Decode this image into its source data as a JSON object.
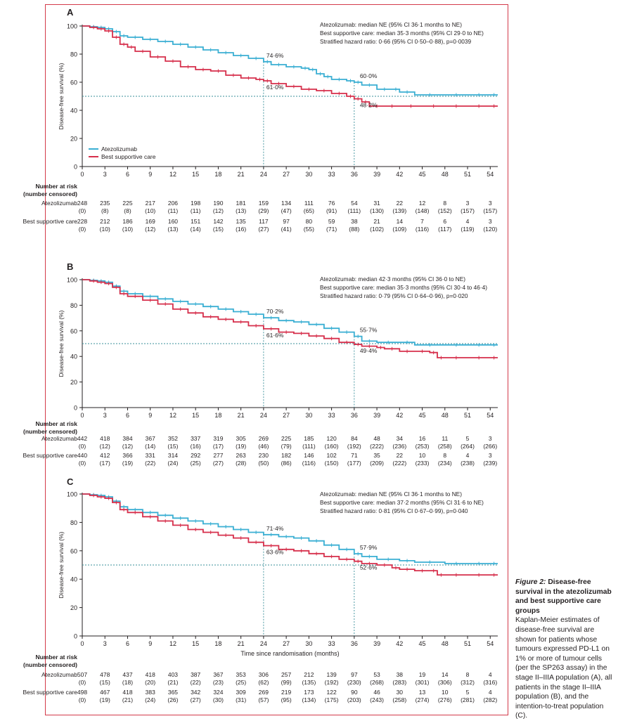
{
  "colors": {
    "atezolizumab": "#3aafd3",
    "bsc": "#d62f4b",
    "frame": "#d33a4a",
    "axis": "#231f20",
    "reference": "#3a8f9a"
  },
  "caption": {
    "figure_label": "Figure 2:",
    "title": "Disease-free survival in the atezolizumab and best supportive care groups",
    "body": "Kaplan-Meier estimates of disease-free survival are shown for patients whose tumours expressed PD-L1 on 1% or more of tumour cells (per the SP263 assay) in the stage II–IIIA population (A), all patients in the stage II–IIIA population (B), and the intention-to-treat population (C)."
  },
  "chart_data": [
    {
      "type": "line",
      "panel": "A",
      "ylabel": "Disease-free survival (%)",
      "xlabel": "",
      "xlim": [
        0,
        55
      ],
      "ylim": [
        0,
        100
      ],
      "xticks": [
        "0",
        "3",
        "6",
        "9",
        "12",
        "15",
        "18",
        "21",
        "24",
        "27",
        "30",
        "33",
        "36",
        "39",
        "42",
        "45",
        "48",
        "51",
        "54"
      ],
      "yticks": [
        "0",
        "20",
        "40",
        "60",
        "80",
        "100"
      ],
      "legend": [
        "Atezolizumab",
        "Best supportive care"
      ],
      "legend_position": "bottom-left",
      "stats": [
        "Atezolizumab: median NE (95% CI 36·1 months to NE)",
        "Best supportive care: median 35·3 months (95% CI 29·0 to NE)",
        "Stratified hazard ratio: 0·66 (95% CI 0·50–0·88), p=0·0039"
      ],
      "annotations": [
        {
          "text": "74·6%",
          "x": 24,
          "y": 74.6,
          "series": "atezolizumab"
        },
        {
          "text": "61·0%",
          "x": 24,
          "y": 61.0,
          "series": "bsc"
        },
        {
          "text": "60·0%",
          "x": 36,
          "y": 60.0,
          "series": "atezolizumab"
        },
        {
          "text": "48·2%",
          "x": 36,
          "y": 48.2,
          "series": "bsc"
        }
      ],
      "series": [
        {
          "name": "Atezolizumab",
          "key": "atezolizumab",
          "x": [
            0,
            1,
            2,
            3,
            4,
            5,
            6,
            8,
            10,
            12,
            14,
            16,
            18,
            20,
            22,
            24,
            25,
            27,
            29,
            30,
            31,
            32,
            33,
            35,
            36,
            37,
            39,
            41,
            42,
            44,
            48,
            51,
            54,
            55
          ],
          "y": [
            100,
            99.5,
            99,
            98,
            96,
            93,
            92,
            90.5,
            89,
            87,
            85,
            83,
            81,
            79,
            77,
            74.6,
            72.5,
            71,
            70,
            69,
            66,
            64,
            62,
            61,
            60,
            58,
            55,
            55,
            53,
            51,
            51,
            51,
            51,
            51
          ]
        },
        {
          "name": "Best supportive care",
          "key": "bsc",
          "x": [
            0,
            1,
            2,
            3,
            4,
            5,
            6,
            7,
            9,
            11,
            13,
            15,
            17,
            19,
            21,
            23,
            24,
            25,
            27,
            29,
            31,
            33,
            35,
            36,
            37,
            38,
            40,
            42,
            45,
            48,
            51,
            54,
            55
          ],
          "y": [
            100,
            99,
            98,
            96.5,
            92,
            87,
            85,
            82,
            78,
            75,
            71,
            69,
            68,
            65,
            63,
            62,
            61,
            59,
            57,
            55,
            54,
            52,
            50,
            48.2,
            46,
            43,
            43,
            43,
            43,
            43,
            43,
            43,
            43
          ]
        }
      ],
      "risk_table": {
        "title_line1": "Number at risk",
        "title_line2": "(number censored)",
        "rows": [
          {
            "label": "Atezolizumab",
            "at_risk": [
              "248",
              "235",
              "225",
              "217",
              "206",
              "198",
              "190",
              "181",
              "159",
              "134",
              "111",
              "76",
              "54",
              "31",
              "22",
              "12",
              "8",
              "3",
              "3"
            ],
            "censored": [
              "(0)",
              "(8)",
              "(8)",
              "(10)",
              "(11)",
              "(11)",
              "(12)",
              "(13)",
              "(29)",
              "(47)",
              "(65)",
              "(91)",
              "(111)",
              "(130)",
              "(139)",
              "(148)",
              "(152)",
              "(157)",
              "(157)"
            ]
          },
          {
            "label": "Best supportive care",
            "at_risk": [
              "228",
              "212",
              "186",
              "169",
              "160",
              "151",
              "142",
              "135",
              "117",
              "97",
              "80",
              "59",
              "38",
              "21",
              "14",
              "7",
              "6",
              "4",
              "3"
            ],
            "censored": [
              "(0)",
              "(10)",
              "(10)",
              "(12)",
              "(13)",
              "(14)",
              "(15)",
              "(16)",
              "(27)",
              "(41)",
              "(55)",
              "(71)",
              "(88)",
              "(102)",
              "(109)",
              "(116)",
              "(117)",
              "(119)",
              "(120)"
            ]
          }
        ]
      }
    },
    {
      "type": "line",
      "panel": "B",
      "ylabel": "Disease-free survival (%)",
      "xlabel": "",
      "xlim": [
        0,
        55
      ],
      "ylim": [
        0,
        100
      ],
      "xticks": [
        "0",
        "3",
        "6",
        "9",
        "12",
        "15",
        "18",
        "21",
        "24",
        "27",
        "30",
        "33",
        "36",
        "39",
        "42",
        "45",
        "48",
        "51",
        "54"
      ],
      "yticks": [
        "0",
        "20",
        "40",
        "60",
        "80",
        "100"
      ],
      "stats": [
        "Atezolizumab: median 42·3 months (95% CI 36·0 to NE)",
        "Best supportive care: median 35·3 months (95% CI 30·4 to 46·4)",
        "Stratified hazard ratio: 0·79 (95% CI 0·64–0·96), p=0·020"
      ],
      "annotations": [
        {
          "text": "70·2%",
          "x": 24,
          "y": 70.2,
          "series": "atezolizumab"
        },
        {
          "text": "61·6%",
          "x": 24,
          "y": 61.6,
          "series": "bsc"
        },
        {
          "text": "55·7%",
          "x": 36,
          "y": 55.7,
          "series": "atezolizumab"
        },
        {
          "text": "49·4%",
          "x": 36,
          "y": 49.4,
          "series": "bsc"
        }
      ],
      "series": [
        {
          "name": "Atezolizumab",
          "key": "atezolizumab",
          "x": [
            0,
            1,
            2,
            3,
            4,
            5,
            6,
            8,
            10,
            12,
            14,
            16,
            18,
            20,
            22,
            24,
            26,
            28,
            30,
            32,
            34,
            36,
            37,
            39,
            42,
            44,
            48,
            51,
            54,
            55
          ],
          "y": [
            100,
            99.5,
            99,
            98,
            95,
            91,
            89,
            87,
            85,
            83,
            81,
            79,
            77,
            75,
            73,
            70.2,
            68,
            67,
            65,
            62,
            59,
            55.7,
            52,
            51,
            51,
            49,
            49,
            49,
            49,
            49
          ]
        },
        {
          "name": "Best supportive care",
          "key": "bsc",
          "x": [
            0,
            1,
            2,
            3,
            4,
            5,
            6,
            8,
            10,
            12,
            14,
            16,
            18,
            20,
            22,
            24,
            26,
            28,
            30,
            32,
            34,
            36,
            37,
            39,
            40,
            42,
            44,
            46,
            47,
            48,
            51,
            54,
            55
          ],
          "y": [
            100,
            99,
            98,
            97,
            94,
            89,
            87,
            84,
            81,
            77,
            74,
            71,
            69,
            67,
            64,
            61.6,
            59,
            58,
            56,
            54,
            51,
            49.4,
            48,
            47,
            46,
            44,
            44,
            43,
            39,
            39,
            39,
            39,
            39
          ]
        }
      ],
      "risk_table": {
        "title_line1": "Number at risk",
        "title_line2": "(number censored)",
        "rows": [
          {
            "label": "Atezolizumab",
            "at_risk": [
              "442",
              "418",
              "384",
              "367",
              "352",
              "337",
              "319",
              "305",
              "269",
              "225",
              "185",
              "120",
              "84",
              "48",
              "34",
              "16",
              "11",
              "5",
              "3"
            ],
            "censored": [
              "(0)",
              "(12)",
              "(12)",
              "(14)",
              "(15)",
              "(16)",
              "(17)",
              "(19)",
              "(46)",
              "(79)",
              "(111)",
              "(160)",
              "(192)",
              "(222)",
              "(236)",
              "(253)",
              "(258)",
              "(264)",
              "(266)"
            ]
          },
          {
            "label": "Best supportive care",
            "at_risk": [
              "440",
              "412",
              "366",
              "331",
              "314",
              "292",
              "277",
              "263",
              "230",
              "182",
              "146",
              "102",
              "71",
              "35",
              "22",
              "10",
              "8",
              "4",
              "3"
            ],
            "censored": [
              "(0)",
              "(17)",
              "(19)",
              "(22)",
              "(24)",
              "(25)",
              "(27)",
              "(28)",
              "(50)",
              "(86)",
              "(116)",
              "(150)",
              "(177)",
              "(209)",
              "(222)",
              "(233)",
              "(234)",
              "(238)",
              "(239)"
            ]
          }
        ]
      }
    },
    {
      "type": "line",
      "panel": "C",
      "ylabel": "Disease-free survival (%)",
      "xlabel": "Time since randomisation (months)",
      "xlim": [
        0,
        55
      ],
      "ylim": [
        0,
        100
      ],
      "xticks": [
        "0",
        "3",
        "6",
        "9",
        "12",
        "15",
        "18",
        "21",
        "24",
        "27",
        "30",
        "33",
        "36",
        "39",
        "42",
        "45",
        "48",
        "51",
        "54"
      ],
      "yticks": [
        "0",
        "20",
        "40",
        "60",
        "80",
        "100"
      ],
      "stats": [
        "Atezolizumab: median NE (95% CI 36·1 months to NE)",
        "Best supportive care: median 37·2 months (95% CI 31·6 to NE)",
        "Stratified hazard ratio: 0·81 (95% CI 0·67–0·99), p=0·040"
      ],
      "annotations": [
        {
          "text": "71·4%",
          "x": 24,
          "y": 71.4,
          "series": "atezolizumab"
        },
        {
          "text": "63·6%",
          "x": 24,
          "y": 63.6,
          "series": "bsc"
        },
        {
          "text": "57·9%",
          "x": 36,
          "y": 57.9,
          "series": "atezolizumab"
        },
        {
          "text": "52·6%",
          "x": 36,
          "y": 52.6,
          "series": "bsc"
        }
      ],
      "series": [
        {
          "name": "Atezolizumab",
          "key": "atezolizumab",
          "x": [
            0,
            1,
            2,
            3,
            4,
            5,
            6,
            8,
            10,
            12,
            14,
            16,
            18,
            20,
            22,
            24,
            26,
            28,
            30,
            32,
            34,
            36,
            37,
            39,
            42,
            44,
            48,
            51,
            54,
            55
          ],
          "y": [
            100,
            99.5,
            99,
            98,
            95,
            91,
            89,
            87,
            85,
            83,
            81,
            79,
            77,
            75,
            73,
            71.4,
            70,
            69,
            67,
            64,
            61,
            57.9,
            56,
            54,
            53,
            52,
            51,
            51,
            51,
            51
          ]
        },
        {
          "name": "Best supportive care",
          "key": "bsc",
          "x": [
            0,
            1,
            2,
            3,
            4,
            5,
            6,
            8,
            10,
            12,
            14,
            16,
            18,
            20,
            22,
            24,
            26,
            28,
            30,
            32,
            34,
            36,
            37,
            39,
            41,
            42,
            44,
            46,
            47,
            48,
            51,
            54,
            55
          ],
          "y": [
            100,
            99,
            98,
            97,
            94,
            89,
            87,
            84,
            81,
            78,
            75,
            73,
            71,
            69,
            66,
            63.6,
            61,
            60,
            58,
            56,
            54,
            52.6,
            51,
            50,
            48,
            47,
            46,
            46,
            43,
            43,
            43,
            43,
            43
          ]
        }
      ],
      "risk_table": {
        "title_line1": "Number at risk",
        "title_line2": "(number censored)",
        "rows": [
          {
            "label": "Atezolizumab",
            "at_risk": [
              "507",
              "478",
              "437",
              "418",
              "403",
              "387",
              "367",
              "353",
              "306",
              "257",
              "212",
              "139",
              "97",
              "53",
              "38",
              "19",
              "14",
              "8",
              "4"
            ],
            "censored": [
              "(0)",
              "(15)",
              "(18)",
              "(20)",
              "(21)",
              "(22)",
              "(23)",
              "(25)",
              "(62)",
              "(99)",
              "(135)",
              "(192)",
              "(230)",
              "(268)",
              "(283)",
              "(301)",
              "(306)",
              "(312)",
              "(316)"
            ]
          },
          {
            "label": "Best supportive care",
            "at_risk": [
              "498",
              "467",
              "418",
              "383",
              "365",
              "342",
              "324",
              "309",
              "269",
              "219",
              "173",
              "122",
              "90",
              "46",
              "30",
              "13",
              "10",
              "5",
              "4"
            ],
            "censored": [
              "(0)",
              "(19)",
              "(21)",
              "(24)",
              "(26)",
              "(27)",
              "(30)",
              "(31)",
              "(57)",
              "(95)",
              "(134)",
              "(175)",
              "(203)",
              "(243)",
              "(258)",
              "(274)",
              "(276)",
              "(281)",
              "(282)"
            ]
          }
        ]
      }
    }
  ]
}
